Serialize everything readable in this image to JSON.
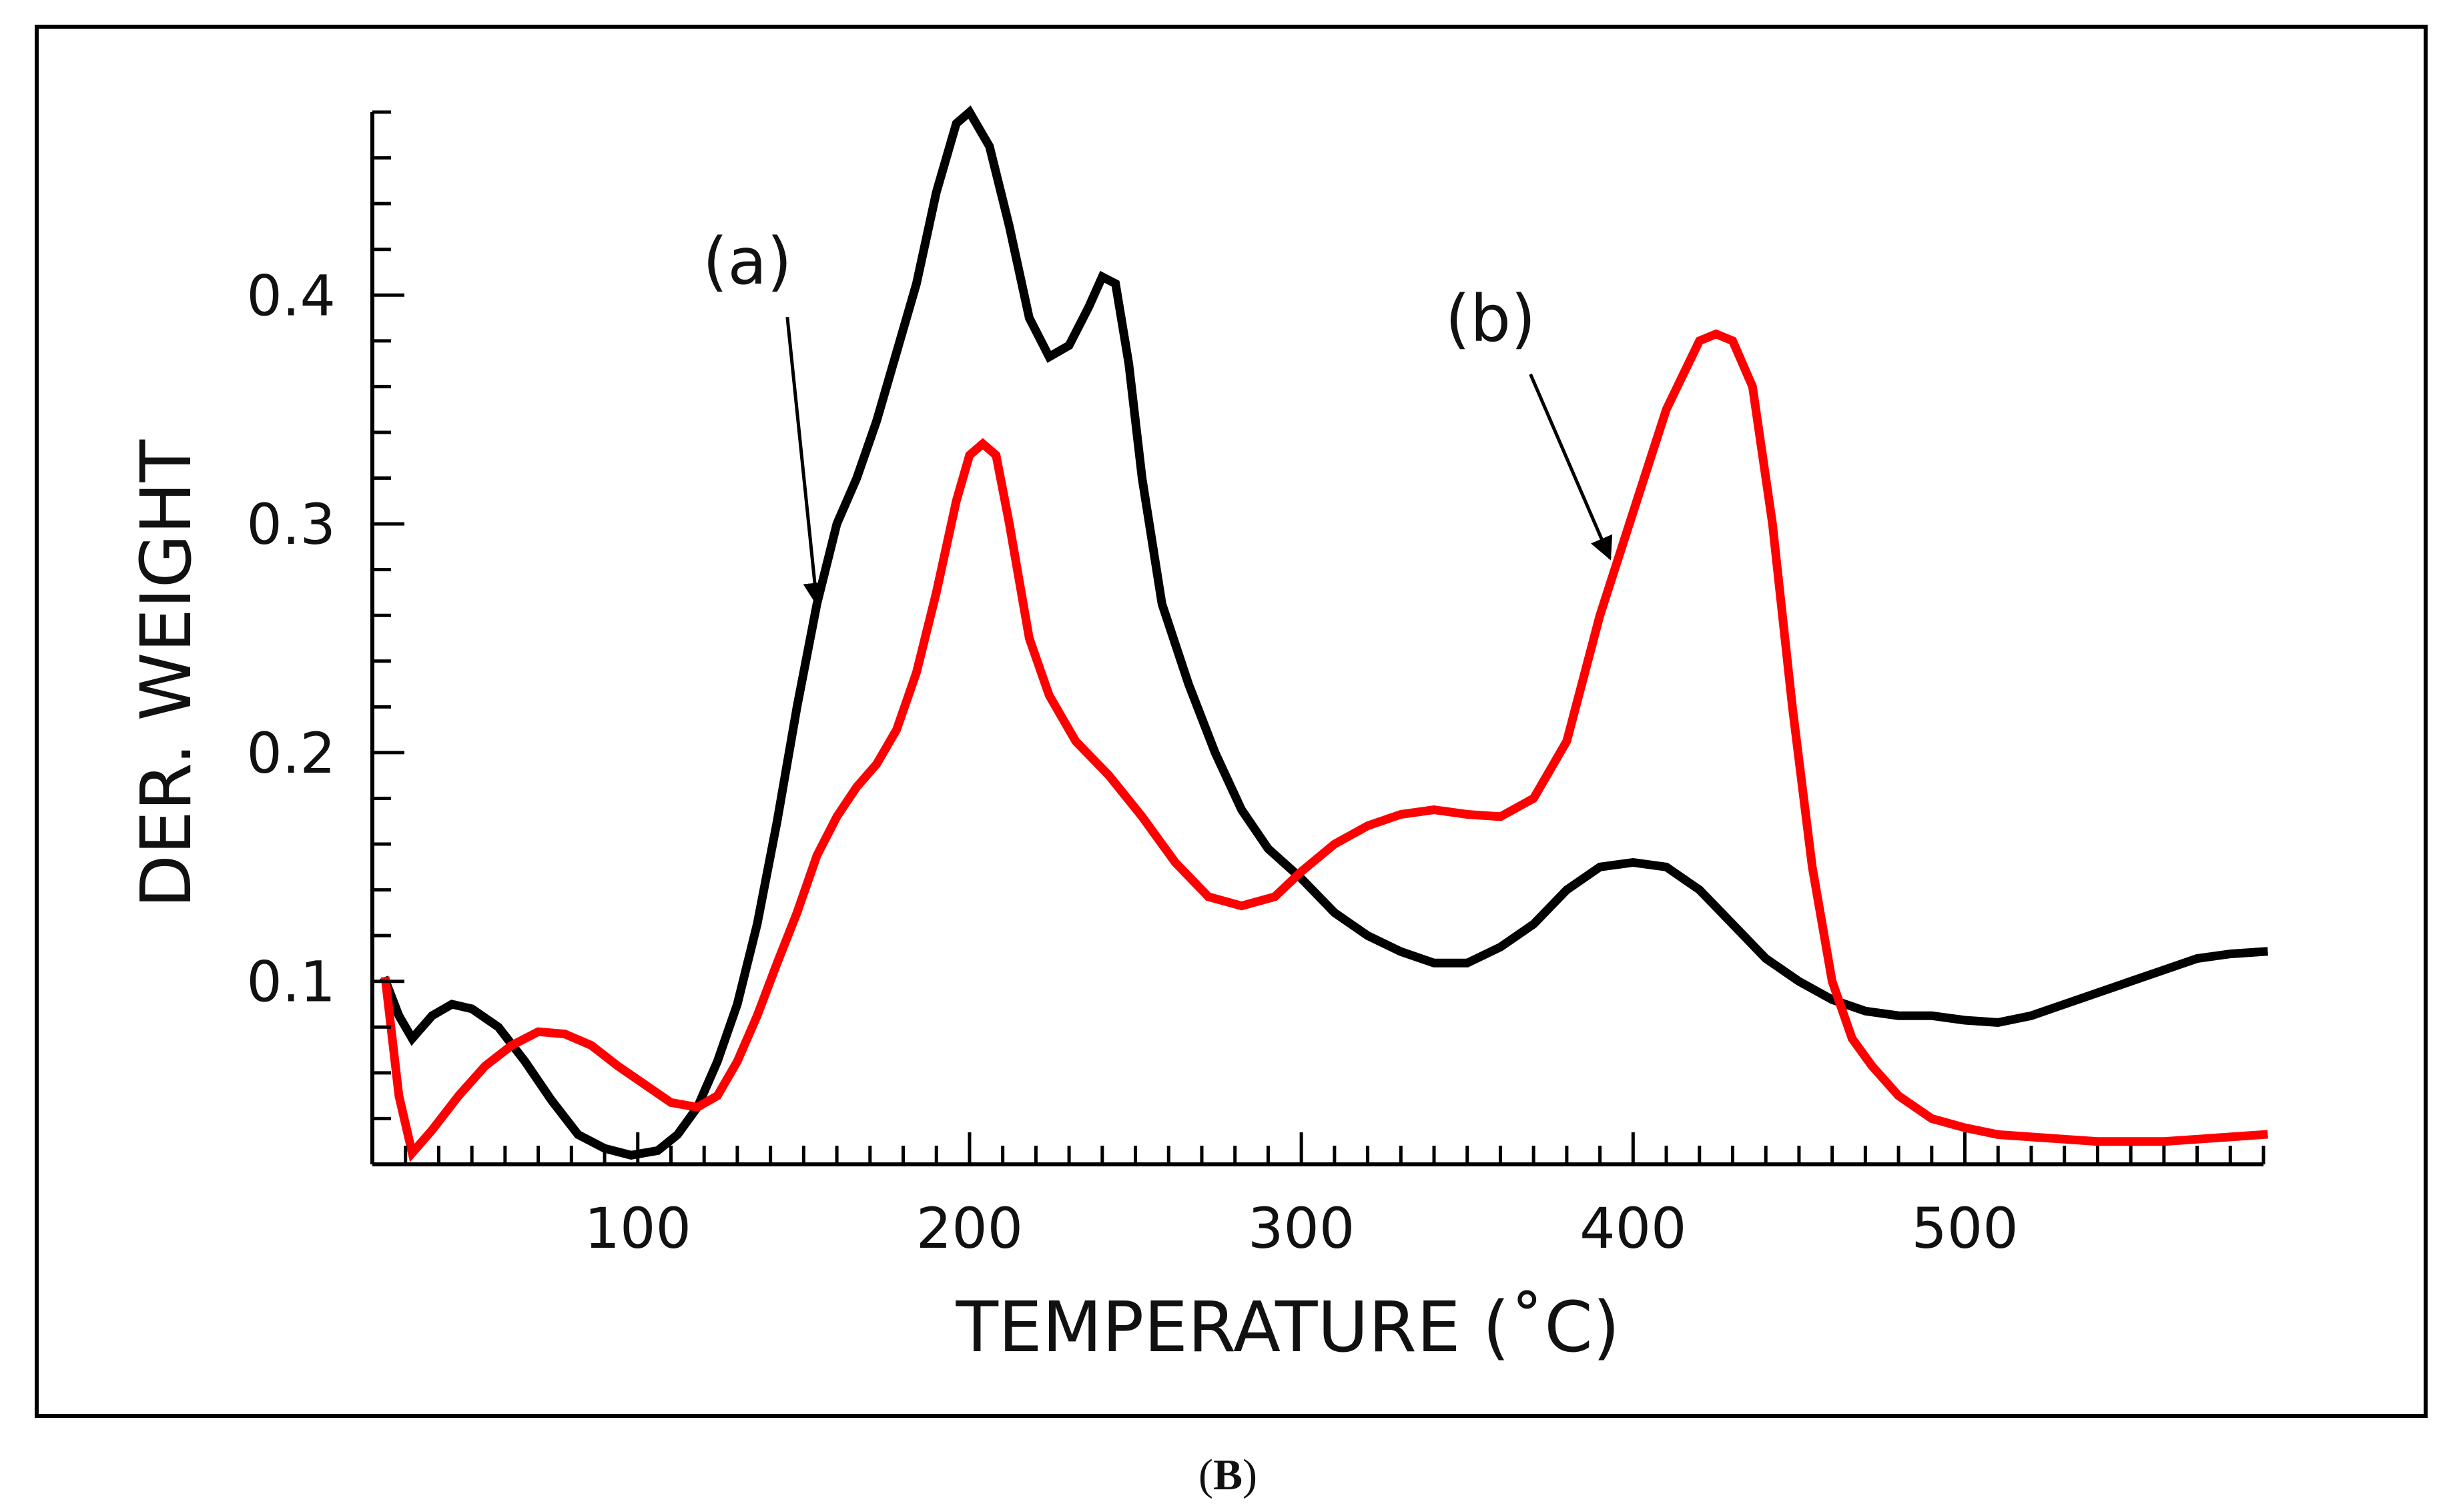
{
  "chart_data": {
    "type": "line",
    "title": "",
    "xlabel": "TEMPERATURE (˚C)",
    "ylabel": "DER. WEIGHT",
    "xlim": [
      20,
      590
    ],
    "ylim": [
      0.02,
      0.48
    ],
    "x_ticks": [
      100,
      200,
      300,
      400,
      500
    ],
    "y_ticks": [
      0.1,
      0.2,
      0.3,
      0.4
    ],
    "x_tick_labels": [
      "100",
      "200",
      "300",
      "400",
      "500"
    ],
    "y_tick_labels": [
      "0.1",
      "0.2",
      "0.3",
      "0.4"
    ],
    "x_minor_step": 10,
    "y_minor_step": 0.02,
    "grid": false,
    "legend": "none",
    "caption_open": "(",
    "caption_letter": "B",
    "caption_close": ")",
    "annotations": [
      {
        "text": "(a)",
        "series": "a",
        "arrow_tip": [
          154,
          0.265
        ],
        "label_at": [
          133,
          0.405
        ]
      },
      {
        "text": "(b)",
        "series": "b",
        "arrow_tip": [
          393,
          0.285
        ],
        "label_at": [
          357,
          0.38
        ]
      }
    ],
    "series": [
      {
        "name": "a",
        "label": "(a)",
        "color": "#000000",
        "x": [
          24,
          28,
          32,
          38,
          44,
          50,
          58,
          66,
          74,
          82,
          90,
          98,
          106,
          112,
          118,
          124,
          130,
          136,
          142,
          148,
          154,
          160,
          166,
          172,
          178,
          184,
          190,
          196,
          200,
          206,
          212,
          218,
          224,
          230,
          236,
          240,
          244,
          248,
          252,
          258,
          266,
          274,
          282,
          290,
          300,
          310,
          320,
          330,
          340,
          350,
          360,
          370,
          380,
          390,
          400,
          410,
          420,
          430,
          440,
          450,
          460,
          470,
          480,
          490,
          500,
          510,
          520,
          530,
          540,
          550,
          560,
          570,
          580,
          590
        ],
        "y": [
          0.1,
          0.085,
          0.075,
          0.085,
          0.09,
          0.088,
          0.08,
          0.065,
          0.048,
          0.033,
          0.027,
          0.024,
          0.026,
          0.033,
          0.045,
          0.065,
          0.09,
          0.125,
          0.17,
          0.22,
          0.265,
          0.3,
          0.32,
          0.345,
          0.375,
          0.405,
          0.445,
          0.475,
          0.48,
          0.465,
          0.43,
          0.39,
          0.373,
          0.378,
          0.395,
          0.408,
          0.405,
          0.37,
          0.32,
          0.265,
          0.23,
          0.2,
          0.175,
          0.158,
          0.145,
          0.13,
          0.12,
          0.113,
          0.108,
          0.108,
          0.115,
          0.125,
          0.14,
          0.15,
          0.152,
          0.15,
          0.14,
          0.125,
          0.11,
          0.1,
          0.092,
          0.087,
          0.085,
          0.085,
          0.083,
          0.082,
          0.085,
          0.09,
          0.095,
          0.1,
          0.105,
          0.11,
          0.112,
          0.113
        ]
      },
      {
        "name": "b",
        "label": "(b)",
        "color": "#ff0000",
        "x": [
          24,
          28,
          32,
          38,
          46,
          54,
          62,
          70,
          78,
          86,
          94,
          102,
          110,
          118,
          124,
          130,
          136,
          142,
          148,
          154,
          160,
          166,
          172,
          178,
          184,
          190,
          196,
          200,
          204,
          208,
          212,
          218,
          224,
          232,
          242,
          252,
          262,
          272,
          282,
          292,
          300,
          310,
          320,
          330,
          340,
          350,
          360,
          370,
          380,
          390,
          400,
          410,
          420,
          425,
          430,
          436,
          442,
          448,
          454,
          460,
          466,
          472,
          480,
          490,
          500,
          510,
          520,
          530,
          540,
          550,
          560,
          570,
          580,
          590
        ],
        "y": [
          0.1,
          0.05,
          0.025,
          0.035,
          0.05,
          0.063,
          0.072,
          0.078,
          0.077,
          0.072,
          0.063,
          0.055,
          0.047,
          0.045,
          0.05,
          0.065,
          0.085,
          0.108,
          0.13,
          0.155,
          0.172,
          0.185,
          0.195,
          0.21,
          0.235,
          0.27,
          0.31,
          0.33,
          0.335,
          0.33,
          0.3,
          0.25,
          0.225,
          0.205,
          0.19,
          0.172,
          0.152,
          0.137,
          0.133,
          0.137,
          0.148,
          0.16,
          0.168,
          0.173,
          0.175,
          0.173,
          0.172,
          0.18,
          0.205,
          0.26,
          0.305,
          0.35,
          0.38,
          0.383,
          0.38,
          0.36,
          0.3,
          0.22,
          0.15,
          0.1,
          0.075,
          0.063,
          0.05,
          0.04,
          0.036,
          0.033,
          0.032,
          0.031,
          0.03,
          0.03,
          0.03,
          0.031,
          0.032,
          0.033
        ]
      }
    ]
  }
}
